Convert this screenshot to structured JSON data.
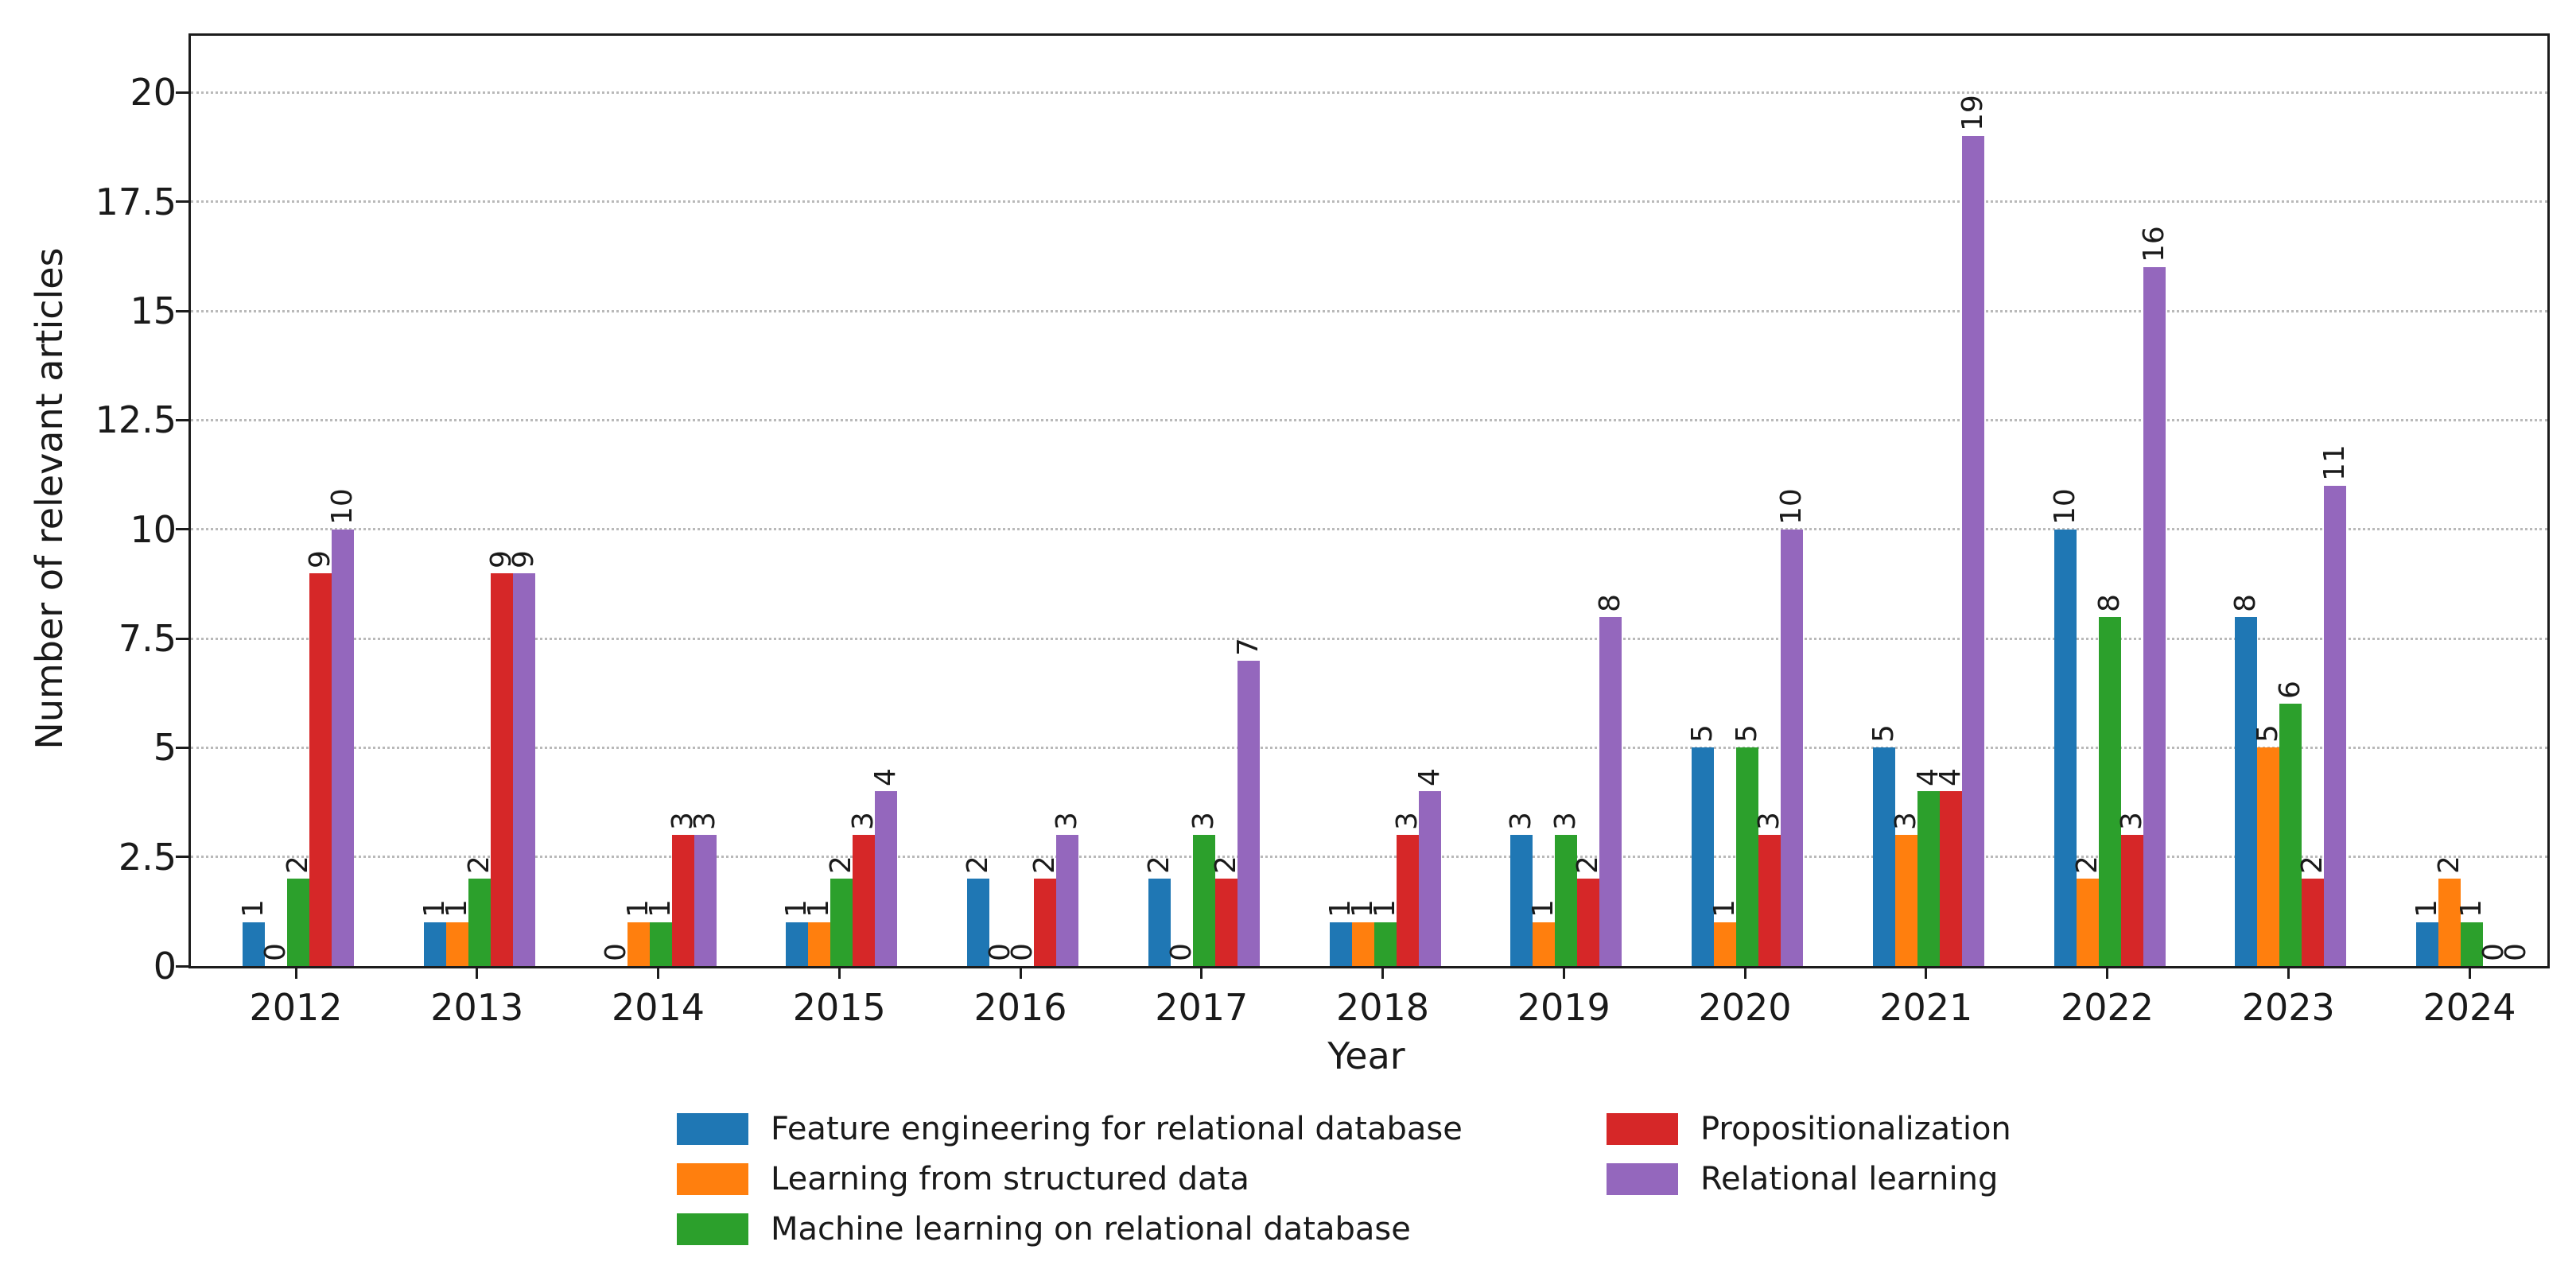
{
  "chart_data": {
    "type": "bar",
    "title": "",
    "xlabel": "Year",
    "ylabel": "Number of relevant articles",
    "categories": [
      "2012",
      "2013",
      "2014",
      "2015",
      "2016",
      "2017",
      "2018",
      "2019",
      "2020",
      "2021",
      "2022",
      "2023",
      "2024"
    ],
    "series": [
      {
        "name": "Feature engineering for relational database",
        "color": "#1f77b4",
        "values": [
          1,
          1,
          0,
          1,
          2,
          2,
          1,
          3,
          5,
          5,
          10,
          8,
          1
        ]
      },
      {
        "name": "Learning from structured data",
        "color": "#ff7f0e",
        "values": [
          0,
          1,
          1,
          1,
          0,
          0,
          1,
          1,
          1,
          3,
          2,
          5,
          2
        ]
      },
      {
        "name": "Machine learning on relational database",
        "color": "#2ca02c",
        "values": [
          2,
          2,
          1,
          2,
          0,
          3,
          1,
          3,
          5,
          4,
          8,
          6,
          1
        ]
      },
      {
        "name": "Propositionalization",
        "color": "#d62728",
        "values": [
          9,
          9,
          3,
          3,
          2,
          2,
          3,
          2,
          3,
          4,
          3,
          2,
          0
        ]
      },
      {
        "name": "Relational learning",
        "color": "#9467bd",
        "values": [
          10,
          9,
          3,
          4,
          3,
          7,
          4,
          8,
          10,
          19,
          16,
          11,
          0
        ]
      }
    ],
    "y_ticks": [
      0,
      2.5,
      5,
      7.5,
      10,
      12.5,
      15,
      17.5,
      20
    ],
    "ylim": [
      0,
      21.3
    ],
    "bar_value_labels": true,
    "grid": "horizontal-dotted",
    "legend_position": "bottom"
  }
}
